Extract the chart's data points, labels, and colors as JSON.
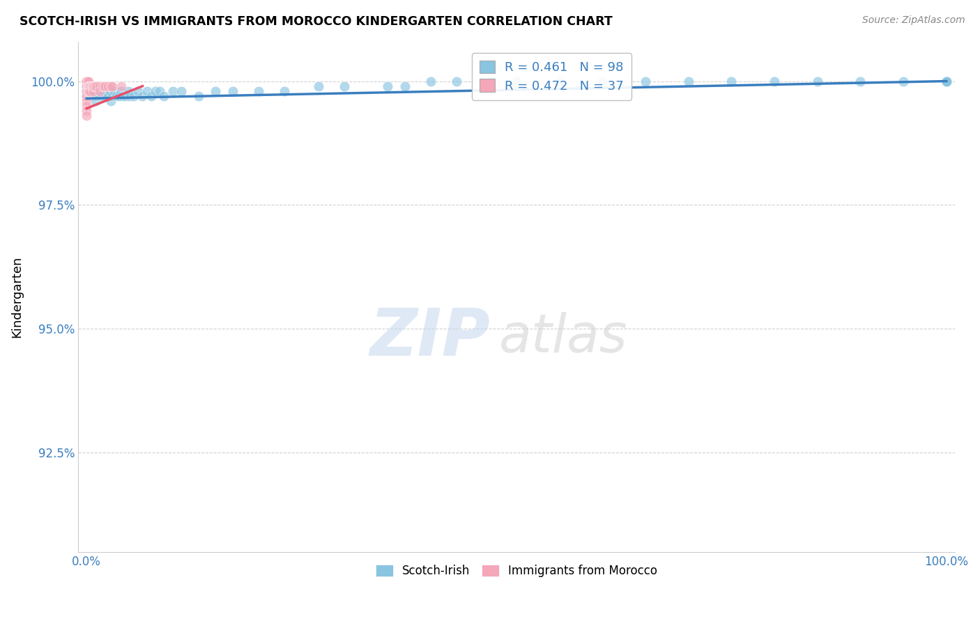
{
  "title": "SCOTCH-IRISH VS IMMIGRANTS FROM MOROCCO KINDERGARTEN CORRELATION CHART",
  "source": "Source: ZipAtlas.com",
  "ylabel": "Kindergarten",
  "blue_color": "#89c4e1",
  "pink_color": "#f4a7b9",
  "trendline_blue": "#3a7ebf",
  "trendline_pink": "#e8506a",
  "legend_entry1": "R = 0.461   N = 98",
  "legend_entry2": "R = 0.472   N = 37",
  "legend_label1": "Scotch-Irish",
  "legend_label2": "Immigrants from Morocco",
  "watermark_zip": "ZIP",
  "watermark_atlas": "atlas",
  "xlim": [
    -0.01,
    1.01
  ],
  "ylim": [
    0.905,
    1.008
  ],
  "yticks": [
    0.925,
    0.95,
    0.975,
    1.0
  ],
  "ytick_labels": [
    "92.5%",
    "95.0%",
    "97.5%",
    "100.0%"
  ],
  "xtick_vals": [
    0.0,
    0.25,
    0.5,
    0.75,
    1.0
  ],
  "xtick_labels": [
    "0.0%",
    "",
    "",
    "",
    "100.0%"
  ],
  "blue_x": [
    0.0,
    0.0,
    0.0,
    0.003,
    0.005,
    0.005,
    0.006,
    0.007,
    0.008,
    0.008,
    0.009,
    0.01,
    0.01,
    0.012,
    0.013,
    0.015,
    0.015,
    0.017,
    0.018,
    0.02,
    0.022,
    0.024,
    0.025,
    0.027,
    0.028,
    0.03,
    0.032,
    0.035,
    0.038,
    0.04,
    0.042,
    0.045,
    0.048,
    0.05,
    0.055,
    0.06,
    0.065,
    0.07,
    0.075,
    0.08,
    0.085,
    0.09,
    0.1,
    0.11,
    0.13,
    0.15,
    0.17,
    0.2,
    0.23,
    0.27,
    0.3,
    0.35,
    0.37,
    0.4,
    0.43,
    0.47,
    0.5,
    0.55,
    0.6,
    0.65,
    0.7,
    0.75,
    0.8,
    0.85,
    0.9,
    0.95,
    1.0,
    1.0,
    1.0,
    1.0,
    1.0,
    1.0,
    1.0,
    1.0,
    1.0,
    1.0,
    1.0,
    1.0,
    1.0,
    1.0,
    1.0,
    1.0,
    1.0,
    1.0,
    1.0,
    1.0,
    1.0,
    1.0,
    1.0,
    1.0,
    1.0,
    1.0,
    1.0,
    1.0,
    1.0,
    1.0,
    1.0,
    1.0
  ],
  "blue_y": [
    0.997,
    0.998,
    0.999,
    0.998,
    0.997,
    0.999,
    0.998,
    0.997,
    0.998,
    0.999,
    0.997,
    0.996,
    0.998,
    0.997,
    0.998,
    0.997,
    0.999,
    0.998,
    0.997,
    0.998,
    0.997,
    0.998,
    0.997,
    0.998,
    0.996,
    0.997,
    0.998,
    0.997,
    0.997,
    0.998,
    0.997,
    0.997,
    0.998,
    0.997,
    0.997,
    0.998,
    0.997,
    0.998,
    0.997,
    0.998,
    0.998,
    0.997,
    0.998,
    0.998,
    0.997,
    0.998,
    0.998,
    0.998,
    0.998,
    0.999,
    0.999,
    0.999,
    0.999,
    1.0,
    1.0,
    1.0,
    1.0,
    1.0,
    1.0,
    1.0,
    1.0,
    1.0,
    1.0,
    1.0,
    1.0,
    1.0,
    1.0,
    1.0,
    1.0,
    1.0,
    1.0,
    1.0,
    1.0,
    1.0,
    1.0,
    1.0,
    1.0,
    1.0,
    1.0,
    1.0,
    1.0,
    1.0,
    1.0,
    1.0,
    1.0,
    1.0,
    1.0,
    1.0,
    1.0,
    1.0,
    1.0,
    1.0,
    1.0,
    1.0,
    1.0,
    1.0,
    1.0,
    1.0
  ],
  "pink_x": [
    0.0,
    0.0,
    0.0,
    0.0,
    0.0,
    0.0,
    0.0,
    0.0,
    0.0,
    0.0,
    0.001,
    0.001,
    0.001,
    0.002,
    0.002,
    0.002,
    0.003,
    0.003,
    0.004,
    0.005,
    0.005,
    0.006,
    0.007,
    0.008,
    0.008,
    0.009,
    0.01,
    0.012,
    0.015,
    0.015,
    0.018,
    0.02,
    0.022,
    0.025,
    0.028,
    0.03,
    0.04
  ],
  "pink_y": [
    1.0,
    1.0,
    1.0,
    0.999,
    0.998,
    0.997,
    0.996,
    0.995,
    0.994,
    0.993,
    1.0,
    0.999,
    0.998,
    1.0,
    0.999,
    0.998,
    0.999,
    0.998,
    0.999,
    0.999,
    0.998,
    0.999,
    0.999,
    0.999,
    0.998,
    0.999,
    0.999,
    0.999,
    0.999,
    0.998,
    0.999,
    0.999,
    0.999,
    0.999,
    0.999,
    0.999,
    0.999
  ],
  "blue_trend_x": [
    0.0,
    1.0
  ],
  "blue_trend_y": [
    0.9965,
    1.0
  ],
  "pink_trend_x": [
    0.0,
    0.065
  ],
  "pink_trend_y": [
    0.9945,
    0.999
  ]
}
